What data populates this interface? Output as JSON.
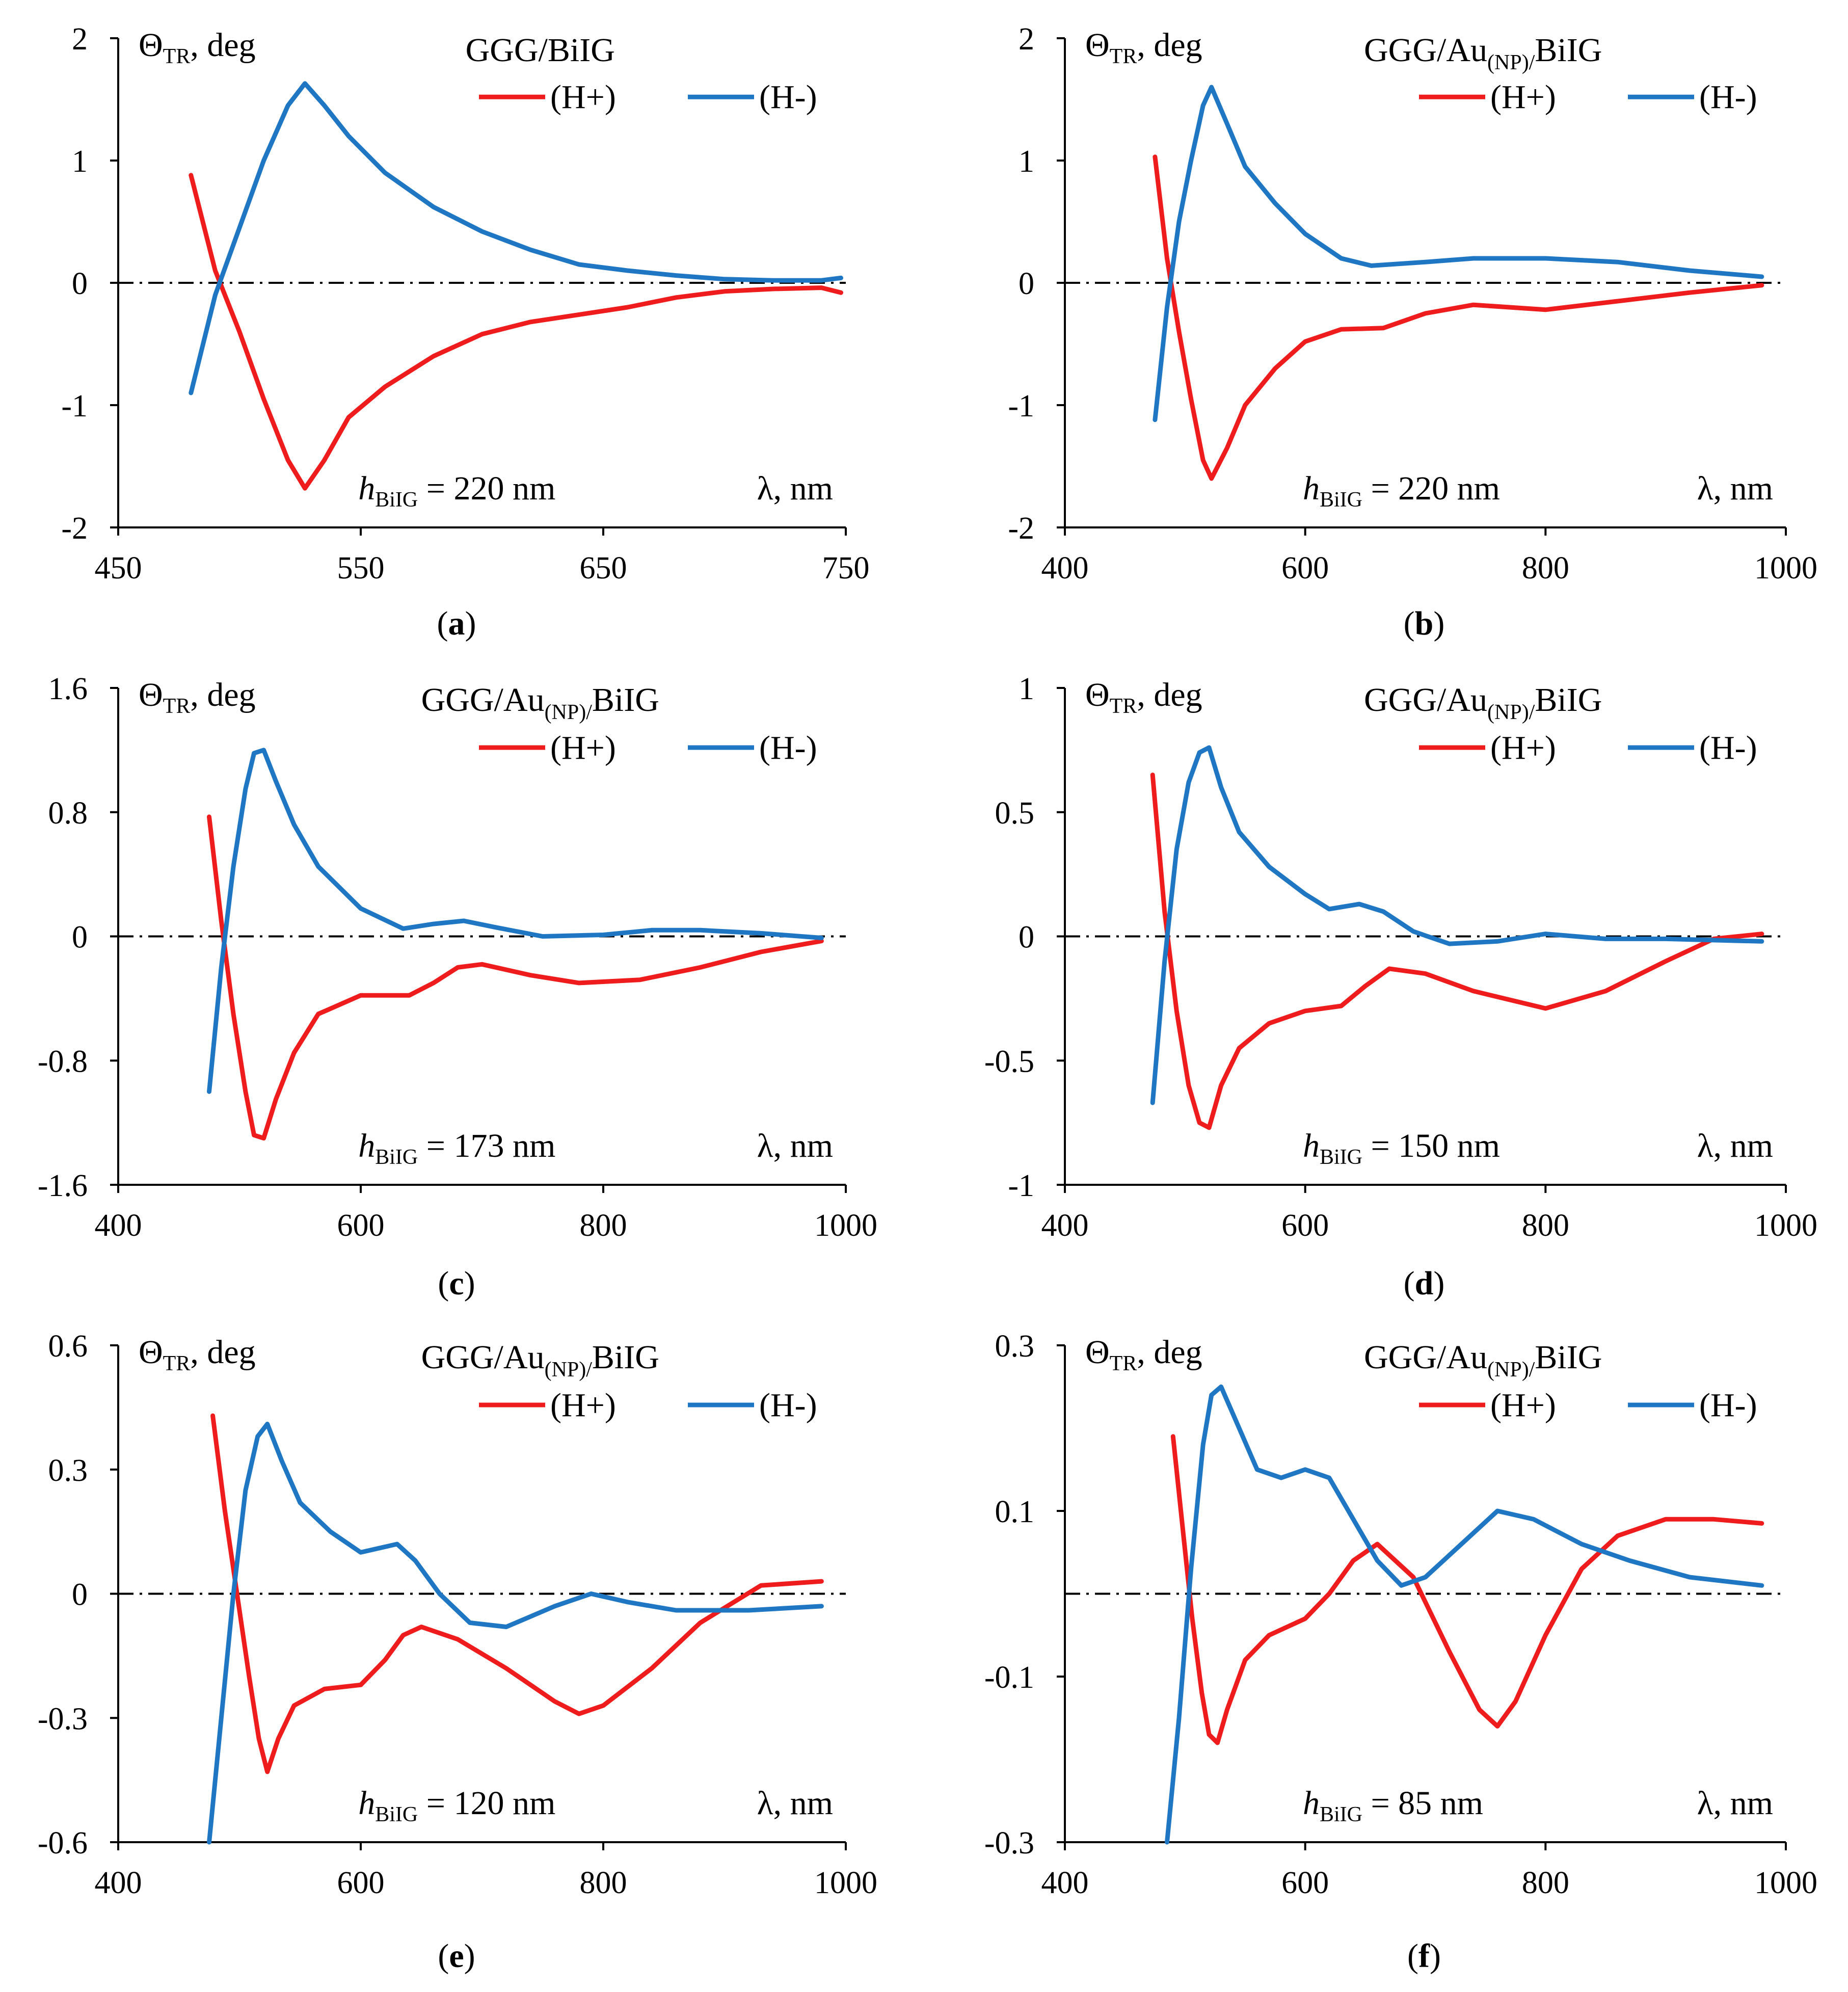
{
  "colors": {
    "h_plus": "#ee1c1c",
    "h_minus": "#1f77c4",
    "axis": "#000000"
  },
  "chart_data": [
    {
      "type": "line",
      "id": "a",
      "title": "GGG/BiIG",
      "title_parts": {
        "base": "GGG/BiIG",
        "sub": "",
        "tail": ""
      },
      "ylabel": {
        "symbol": "Θ",
        "sub": "TR",
        "unit": ", deg"
      },
      "xlabel": "λ, nm",
      "thickness": {
        "var": "h",
        "sub": "BiIG",
        "value": " = 220 nm"
      },
      "caption": {
        "open": "(",
        "letter": "a",
        "close": ")"
      },
      "xlim": [
        450,
        750
      ],
      "ylim": [
        -2,
        2
      ],
      "xticks": [
        450,
        550,
        650,
        750
      ],
      "yticks": [
        2,
        1,
        0,
        -1,
        -2
      ],
      "ytick_labels": [
        "2",
        "1",
        "0",
        "-1",
        "-2"
      ],
      "legend": {
        "position": "top-right",
        "entries": [
          "(H+)",
          "(H-)"
        ]
      },
      "series": [
        {
          "name": "(H+)",
          "color": "#ee1c1c",
          "x": [
            480,
            490,
            500,
            510,
            520,
            527,
            535,
            545,
            560,
            580,
            600,
            620,
            640,
            660,
            680,
            700,
            720,
            740,
            748
          ],
          "y": [
            0.88,
            0.1,
            -0.4,
            -0.95,
            -1.45,
            -1.68,
            -1.45,
            -1.1,
            -0.85,
            -0.6,
            -0.42,
            -0.32,
            -0.26,
            -0.2,
            -0.12,
            -0.07,
            -0.05,
            -0.04,
            -0.08
          ]
        },
        {
          "name": "(H-)",
          "color": "#1f77c4",
          "x": [
            480,
            490,
            500,
            510,
            520,
            527,
            535,
            545,
            560,
            580,
            600,
            620,
            640,
            660,
            680,
            700,
            720,
            740,
            748
          ],
          "y": [
            -0.9,
            -0.1,
            0.45,
            1.0,
            1.45,
            1.63,
            1.45,
            1.2,
            0.9,
            0.62,
            0.42,
            0.27,
            0.15,
            0.1,
            0.06,
            0.03,
            0.02,
            0.02,
            0.04
          ]
        }
      ]
    },
    {
      "type": "line",
      "id": "b",
      "title": "GGG/Au(NP)/BiIG",
      "title_parts": {
        "base": "GGG/Au",
        "sub": "(NP)/",
        "tail": "BiIG"
      },
      "ylabel": {
        "symbol": "Θ",
        "sub": "TR",
        "unit": ", deg"
      },
      "xlabel": "λ, nm",
      "thickness": {
        "var": "h",
        "sub": "BiIG",
        "value": " = 220 nm"
      },
      "caption": {
        "open": "(",
        "letter": "b",
        "close": ")"
      },
      "xlim": [
        400,
        1000
      ],
      "ylim": [
        -2,
        2
      ],
      "xticks": [
        400,
        600,
        800,
        1000
      ],
      "yticks": [
        2,
        1,
        0,
        -1,
        -2
      ],
      "ytick_labels": [
        "2",
        "1",
        "0",
        "-1",
        "-2"
      ],
      "legend": {
        "position": "top-right",
        "entries": [
          "(H+)",
          "(H-)"
        ]
      },
      "series": [
        {
          "name": "(H+)",
          "color": "#ee1c1c",
          "x": [
            475,
            485,
            495,
            505,
            515,
            522,
            535,
            550,
            575,
            600,
            630,
            665,
            700,
            740,
            800,
            860,
            920,
            980
          ],
          "y": [
            1.03,
            0.2,
            -0.4,
            -0.95,
            -1.45,
            -1.6,
            -1.35,
            -1.0,
            -0.7,
            -0.48,
            -0.38,
            -0.37,
            -0.25,
            -0.18,
            -0.22,
            -0.15,
            -0.08,
            -0.02
          ]
        },
        {
          "name": "(H-)",
          "color": "#1f77c4",
          "x": [
            475,
            485,
            495,
            505,
            515,
            522,
            535,
            550,
            575,
            600,
            630,
            655,
            700,
            740,
            800,
            860,
            920,
            980
          ],
          "y": [
            -1.12,
            -0.2,
            0.5,
            1.0,
            1.45,
            1.6,
            1.3,
            0.95,
            0.65,
            0.4,
            0.2,
            0.14,
            0.17,
            0.2,
            0.2,
            0.17,
            0.1,
            0.05
          ]
        }
      ]
    },
    {
      "type": "line",
      "id": "c",
      "title": "GGG/Au(NP)/BiIG",
      "title_parts": {
        "base": "GGG/Au",
        "sub": "(NP)/",
        "tail": "BiIG"
      },
      "ylabel": {
        "symbol": "Θ",
        "sub": "TR",
        "unit": ", deg"
      },
      "xlabel": "λ, nm",
      "thickness": {
        "var": "h",
        "sub": "BiIG",
        "value": " = 173 nm"
      },
      "caption": {
        "open": "(",
        "letter": "c",
        "close": ")"
      },
      "xlim": [
        400,
        1000
      ],
      "ylim": [
        -1.6,
        1.6
      ],
      "xticks": [
        400,
        600,
        800,
        1000
      ],
      "yticks": [
        1.6,
        0.8,
        0,
        -0.8,
        -1.6
      ],
      "ytick_labels": [
        "1.6",
        "0.8",
        "0",
        "-0.8",
        "-1.6"
      ],
      "legend": {
        "position": "top-right",
        "entries": [
          "(H+)",
          "(H-)"
        ]
      },
      "series": [
        {
          "name": "(H+)",
          "color": "#ee1c1c",
          "x": [
            475,
            485,
            495,
            505,
            512,
            520,
            530,
            545,
            565,
            600,
            640,
            660,
            680,
            700,
            740,
            780,
            830,
            880,
            930,
            980
          ],
          "y": [
            0.77,
            0.1,
            -0.5,
            -1.0,
            -1.28,
            -1.3,
            -1.05,
            -0.75,
            -0.5,
            -0.38,
            -0.38,
            -0.3,
            -0.2,
            -0.18,
            -0.25,
            -0.3,
            -0.28,
            -0.2,
            -0.1,
            -0.03
          ]
        },
        {
          "name": "(H-)",
          "color": "#1f77c4",
          "x": [
            475,
            485,
            495,
            505,
            512,
            520,
            530,
            545,
            565,
            600,
            635,
            660,
            685,
            710,
            750,
            800,
            840,
            880,
            930,
            980
          ],
          "y": [
            -1.0,
            -0.2,
            0.45,
            0.95,
            1.18,
            1.2,
            1.0,
            0.72,
            0.45,
            0.18,
            0.05,
            0.08,
            0.1,
            0.06,
            0.0,
            0.01,
            0.04,
            0.04,
            0.02,
            -0.01
          ]
        }
      ]
    },
    {
      "type": "line",
      "id": "d",
      "title": "GGG/Au(NP)/BiIG",
      "title_parts": {
        "base": "GGG/Au",
        "sub": "(NP)/",
        "tail": "BiIG"
      },
      "ylabel": {
        "symbol": "Θ",
        "sub": "TR",
        "unit": ", deg"
      },
      "xlabel": "λ, nm",
      "thickness": {
        "var": "h",
        "sub": "BiIG",
        "value": " = 150 nm"
      },
      "caption": {
        "open": "(",
        "letter": "d",
        "close": ")"
      },
      "xlim": [
        400,
        1000
      ],
      "ylim": [
        -1,
        1
      ],
      "xticks": [
        400,
        600,
        800,
        1000
      ],
      "yticks": [
        1,
        0.5,
        0,
        -0.5,
        -1
      ],
      "ytick_labels": [
        "1",
        "0.5",
        "0",
        "-0.5",
        "-1"
      ],
      "legend": {
        "position": "top-right",
        "entries": [
          "(H+)",
          "(H-)"
        ]
      },
      "series": [
        {
          "name": "(H+)",
          "color": "#ee1c1c",
          "x": [
            473,
            483,
            493,
            503,
            512,
            520,
            530,
            545,
            570,
            600,
            630,
            650,
            670,
            700,
            740,
            800,
            850,
            900,
            940,
            980
          ],
          "y": [
            0.65,
            0.1,
            -0.3,
            -0.6,
            -0.75,
            -0.77,
            -0.6,
            -0.45,
            -0.35,
            -0.3,
            -0.28,
            -0.2,
            -0.13,
            -0.15,
            -0.22,
            -0.29,
            -0.22,
            -0.1,
            -0.01,
            0.01
          ]
        },
        {
          "name": "(H-)",
          "color": "#1f77c4",
          "x": [
            473,
            483,
            493,
            503,
            512,
            520,
            530,
            545,
            570,
            600,
            620,
            645,
            665,
            690,
            720,
            760,
            800,
            850,
            900,
            980
          ],
          "y": [
            -0.67,
            -0.1,
            0.35,
            0.62,
            0.74,
            0.76,
            0.6,
            0.42,
            0.28,
            0.17,
            0.11,
            0.13,
            0.1,
            0.02,
            -0.03,
            -0.02,
            0.01,
            -0.01,
            -0.01,
            -0.02
          ]
        }
      ]
    },
    {
      "type": "line",
      "id": "e",
      "title": "GGG/Au(NP)/BiIG",
      "title_parts": {
        "base": "GGG/Au",
        "sub": "(NP)/",
        "tail": "BiIG"
      },
      "ylabel": {
        "symbol": "Θ",
        "sub": "TR",
        "unit": ", deg"
      },
      "xlabel": "λ, nm",
      "thickness": {
        "var": "h",
        "sub": "BiIG",
        "value": " = 120 nm"
      },
      "caption": {
        "open": "(",
        "letter": "e",
        "close": ")"
      },
      "xlim": [
        400,
        1000
      ],
      "ylim": [
        -0.6,
        0.6
      ],
      "xticks": [
        400,
        600,
        800,
        1000
      ],
      "yticks": [
        0.6,
        0.3,
        0,
        -0.3,
        -0.6
      ],
      "ytick_labels": [
        "0.6",
        "0.3",
        "0",
        "-0.3",
        "-0.6"
      ],
      "legend": {
        "position": "top-right",
        "entries": [
          "(H+)",
          "(H-)"
        ]
      },
      "series": [
        {
          "name": "(H+)",
          "color": "#ee1c1c",
          "x": [
            478,
            488,
            498,
            508,
            516,
            523,
            532,
            545,
            570,
            600,
            620,
            635,
            650,
            680,
            720,
            760,
            780,
            800,
            840,
            880,
            930,
            980
          ],
          "y": [
            0.43,
            0.2,
            0.0,
            -0.2,
            -0.35,
            -0.43,
            -0.35,
            -0.27,
            -0.23,
            -0.22,
            -0.16,
            -0.1,
            -0.08,
            -0.11,
            -0.18,
            -0.26,
            -0.29,
            -0.27,
            -0.18,
            -0.07,
            0.02,
            0.03
          ]
        },
        {
          "name": "(H-)",
          "color": "#1f77c4",
          "x": [
            475,
            485,
            495,
            505,
            515,
            523,
            535,
            550,
            575,
            600,
            615,
            630,
            645,
            665,
            690,
            720,
            760,
            790,
            820,
            860,
            920,
            980
          ],
          "y": [
            -0.6,
            -0.3,
            0.0,
            0.25,
            0.38,
            0.41,
            0.32,
            0.22,
            0.15,
            0.1,
            0.11,
            0.12,
            0.08,
            0.0,
            -0.07,
            -0.08,
            -0.03,
            0.0,
            -0.02,
            -0.04,
            -0.04,
            -0.03
          ]
        }
      ]
    },
    {
      "type": "line",
      "id": "f",
      "title": "GGG/Au(NP)/BiIG",
      "title_parts": {
        "base": "GGG/Au",
        "sub": "(NP)/",
        "tail": "BiIG"
      },
      "ylabel": {
        "symbol": "Θ",
        "sub": "TR",
        "unit": ", deg"
      },
      "xlabel": "λ, nm",
      "thickness": {
        "var": "h",
        "sub": "BiIG",
        "value": " = 85 nm"
      },
      "caption": {
        "open": "(",
        "letter": "f",
        "close": ")"
      },
      "xlim": [
        400,
        1000
      ],
      "ylim": [
        -0.3,
        0.3
      ],
      "xticks": [
        400,
        600,
        800,
        1000
      ],
      "yticks": [
        0.3,
        0.1,
        -0.1,
        -0.3
      ],
      "ytick_labels": [
        "0.3",
        "0.1",
        "-0.1",
        "-0.3"
      ],
      "legend": {
        "position": "top-right",
        "entries": [
          "(H+)",
          "(H-)"
        ]
      },
      "series": [
        {
          "name": "(H+)",
          "color": "#ee1c1c",
          "x": [
            490,
            498,
            506,
            514,
            520,
            527,
            535,
            550,
            570,
            600,
            620,
            640,
            660,
            690,
            720,
            745,
            760,
            775,
            800,
            830,
            860,
            900,
            940,
            980
          ],
          "y": [
            0.19,
            0.08,
            -0.03,
            -0.12,
            -0.17,
            -0.18,
            -0.14,
            -0.08,
            -0.05,
            -0.03,
            0.0,
            0.04,
            0.06,
            0.02,
            -0.07,
            -0.14,
            -0.16,
            -0.13,
            -0.05,
            0.03,
            0.07,
            0.09,
            0.09,
            0.085
          ]
        },
        {
          "name": "(H-)",
          "color": "#1f77c4",
          "x": [
            485,
            495,
            505,
            515,
            522,
            530,
            545,
            560,
            580,
            600,
            620,
            640,
            660,
            680,
            700,
            730,
            760,
            790,
            830,
            870,
            920,
            980
          ],
          "y": [
            -0.3,
            -0.15,
            0.03,
            0.18,
            0.24,
            0.25,
            0.2,
            0.15,
            0.14,
            0.15,
            0.14,
            0.09,
            0.04,
            0.01,
            0.02,
            0.06,
            0.1,
            0.09,
            0.06,
            0.04,
            0.02,
            0.01
          ]
        }
      ]
    }
  ]
}
